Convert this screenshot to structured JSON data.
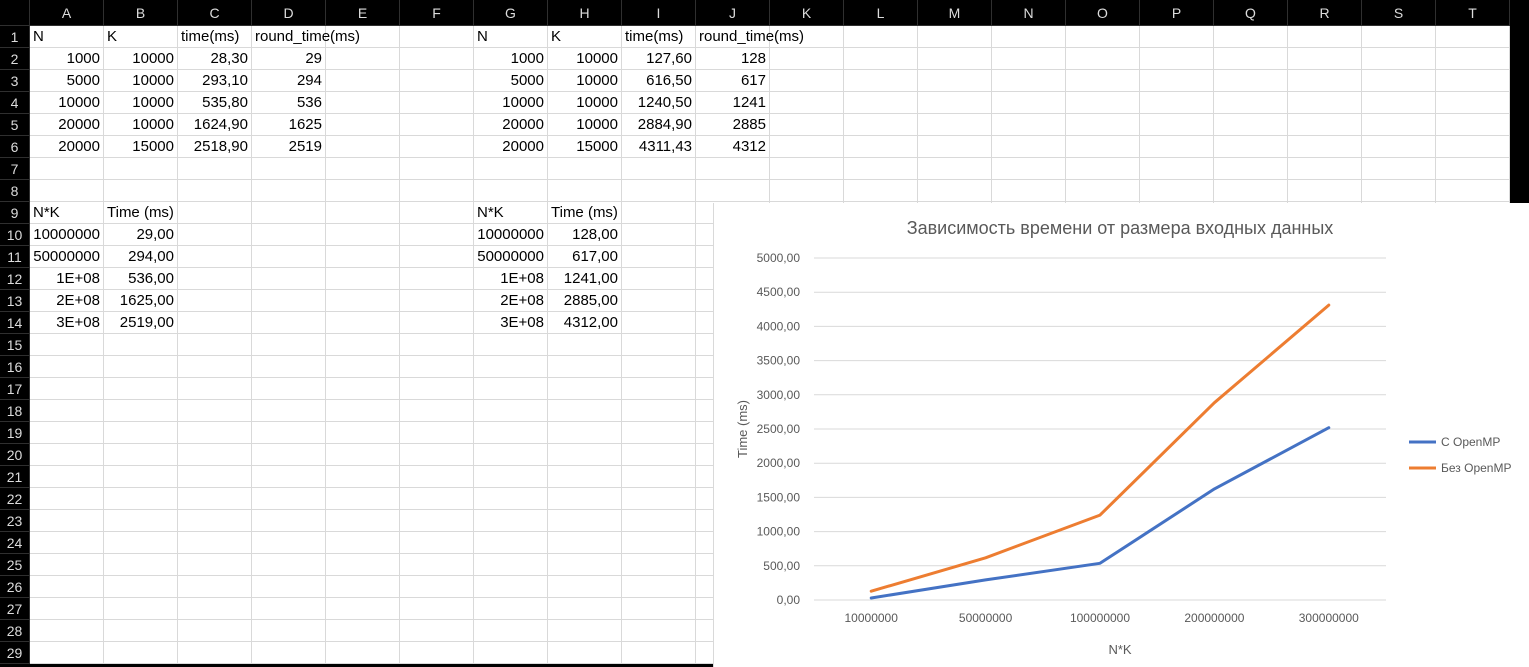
{
  "columns": [
    "A",
    "B",
    "C",
    "D",
    "E",
    "F",
    "G",
    "H",
    "I",
    "J",
    "K",
    "L",
    "M",
    "N",
    "O",
    "P",
    "Q",
    "R",
    "S",
    "T"
  ],
  "rows": [
    "1",
    "2",
    "3",
    "4",
    "5",
    "6",
    "7",
    "8",
    "9",
    "10",
    "11",
    "12",
    "13",
    "14",
    "15",
    "16",
    "17",
    "18",
    "19",
    "20",
    "21",
    "22",
    "23",
    "24",
    "25",
    "26",
    "27",
    "28",
    "29"
  ],
  "cells": [
    {
      "ref": "A1",
      "v": "N",
      "a": "l"
    },
    {
      "ref": "B1",
      "v": "K",
      "a": "l"
    },
    {
      "ref": "C1",
      "v": "time(ms)",
      "a": "l"
    },
    {
      "ref": "D1",
      "v": "round_time(ms)",
      "a": "l"
    },
    {
      "ref": "G1",
      "v": "N",
      "a": "l"
    },
    {
      "ref": "H1",
      "v": "K",
      "a": "l"
    },
    {
      "ref": "I1",
      "v": "time(ms)",
      "a": "l"
    },
    {
      "ref": "J1",
      "v": "round_time(ms)",
      "a": "l"
    },
    {
      "ref": "A2",
      "v": "1000",
      "a": "r"
    },
    {
      "ref": "B2",
      "v": "10000",
      "a": "r"
    },
    {
      "ref": "C2",
      "v": "28,30",
      "a": "r"
    },
    {
      "ref": "D2",
      "v": "29",
      "a": "r"
    },
    {
      "ref": "G2",
      "v": "1000",
      "a": "r"
    },
    {
      "ref": "H2",
      "v": "10000",
      "a": "r"
    },
    {
      "ref": "I2",
      "v": "127,60",
      "a": "r"
    },
    {
      "ref": "J2",
      "v": "128",
      "a": "r"
    },
    {
      "ref": "A3",
      "v": "5000",
      "a": "r"
    },
    {
      "ref": "B3",
      "v": "10000",
      "a": "r"
    },
    {
      "ref": "C3",
      "v": "293,10",
      "a": "r"
    },
    {
      "ref": "D3",
      "v": "294",
      "a": "r"
    },
    {
      "ref": "G3",
      "v": "5000",
      "a": "r"
    },
    {
      "ref": "H3",
      "v": "10000",
      "a": "r"
    },
    {
      "ref": "I3",
      "v": "616,50",
      "a": "r"
    },
    {
      "ref": "J3",
      "v": "617",
      "a": "r"
    },
    {
      "ref": "A4",
      "v": "10000",
      "a": "r"
    },
    {
      "ref": "B4",
      "v": "10000",
      "a": "r"
    },
    {
      "ref": "C4",
      "v": "535,80",
      "a": "r"
    },
    {
      "ref": "D4",
      "v": "536",
      "a": "r"
    },
    {
      "ref": "G4",
      "v": "10000",
      "a": "r"
    },
    {
      "ref": "H4",
      "v": "10000",
      "a": "r"
    },
    {
      "ref": "I4",
      "v": "1240,50",
      "a": "r"
    },
    {
      "ref": "J4",
      "v": "1241",
      "a": "r"
    },
    {
      "ref": "A5",
      "v": "20000",
      "a": "r"
    },
    {
      "ref": "B5",
      "v": "10000",
      "a": "r"
    },
    {
      "ref": "C5",
      "v": "1624,90",
      "a": "r"
    },
    {
      "ref": "D5",
      "v": "1625",
      "a": "r"
    },
    {
      "ref": "G5",
      "v": "20000",
      "a": "r"
    },
    {
      "ref": "H5",
      "v": "10000",
      "a": "r"
    },
    {
      "ref": "I5",
      "v": "2884,90",
      "a": "r"
    },
    {
      "ref": "J5",
      "v": "2885",
      "a": "r"
    },
    {
      "ref": "A6",
      "v": "20000",
      "a": "r"
    },
    {
      "ref": "B6",
      "v": "15000",
      "a": "r"
    },
    {
      "ref": "C6",
      "v": "2518,90",
      "a": "r"
    },
    {
      "ref": "D6",
      "v": "2519",
      "a": "r"
    },
    {
      "ref": "G6",
      "v": "20000",
      "a": "r"
    },
    {
      "ref": "H6",
      "v": "15000",
      "a": "r"
    },
    {
      "ref": "I6",
      "v": "4311,43",
      "a": "r"
    },
    {
      "ref": "J6",
      "v": "4312",
      "a": "r"
    },
    {
      "ref": "A9",
      "v": "N*K",
      "a": "l"
    },
    {
      "ref": "B9",
      "v": "Time (ms)",
      "a": "l"
    },
    {
      "ref": "G9",
      "v": "N*K",
      "a": "l"
    },
    {
      "ref": "H9",
      "v": "Time (ms)",
      "a": "l"
    },
    {
      "ref": "A10",
      "v": "10000000",
      "a": "r"
    },
    {
      "ref": "B10",
      "v": "29,00",
      "a": "r"
    },
    {
      "ref": "G10",
      "v": "10000000",
      "a": "r"
    },
    {
      "ref": "H10",
      "v": "128,00",
      "a": "r"
    },
    {
      "ref": "A11",
      "v": "50000000",
      "a": "r"
    },
    {
      "ref": "B11",
      "v": "294,00",
      "a": "r"
    },
    {
      "ref": "G11",
      "v": "50000000",
      "a": "r"
    },
    {
      "ref": "H11",
      "v": "617,00",
      "a": "r"
    },
    {
      "ref": "A12",
      "v": "1E+08",
      "a": "r"
    },
    {
      "ref": "B12",
      "v": "536,00",
      "a": "r"
    },
    {
      "ref": "G12",
      "v": "1E+08",
      "a": "r"
    },
    {
      "ref": "H12",
      "v": "1241,00",
      "a": "r"
    },
    {
      "ref": "A13",
      "v": "2E+08",
      "a": "r"
    },
    {
      "ref": "B13",
      "v": "1625,00",
      "a": "r"
    },
    {
      "ref": "G13",
      "v": "2E+08",
      "a": "r"
    },
    {
      "ref": "H13",
      "v": "2885,00",
      "a": "r"
    },
    {
      "ref": "A14",
      "v": "3E+08",
      "a": "r"
    },
    {
      "ref": "B14",
      "v": "2519,00",
      "a": "r"
    },
    {
      "ref": "G14",
      "v": "3E+08",
      "a": "r"
    },
    {
      "ref": "H14",
      "v": "4312,00",
      "a": "r"
    }
  ],
  "chart_data": {
    "type": "line",
    "title": "Зависимость времени от размера входных данных",
    "xlabel": "N*K",
    "ylabel": "Time (ms)",
    "categories": [
      "10000000",
      "50000000",
      "100000000",
      "200000000",
      "300000000"
    ],
    "ylim": [
      0,
      5000
    ],
    "yticks": [
      "0,00",
      "500,00",
      "1000,00",
      "1500,00",
      "2000,00",
      "2500,00",
      "3000,00",
      "3500,00",
      "4000,00",
      "4500,00",
      "5000,00"
    ],
    "grid": true,
    "legend_position": "right",
    "series": [
      {
        "name": "С OpenMP",
        "values": [
          29,
          294,
          536,
          1625,
          2519
        ],
        "color": "#4472c4"
      },
      {
        "name": "Без OpenMP",
        "values": [
          128,
          617,
          1241,
          2885,
          4312
        ],
        "color": "#ed7d31"
      }
    ]
  },
  "colors": {
    "sheet_bg": "#ffffff",
    "header_bg": "#000000",
    "header_text": "#dcdcdc",
    "gridline": "#d9d9d9",
    "chart_grid": "#d9d9d9",
    "chart_text": "#595959"
  }
}
